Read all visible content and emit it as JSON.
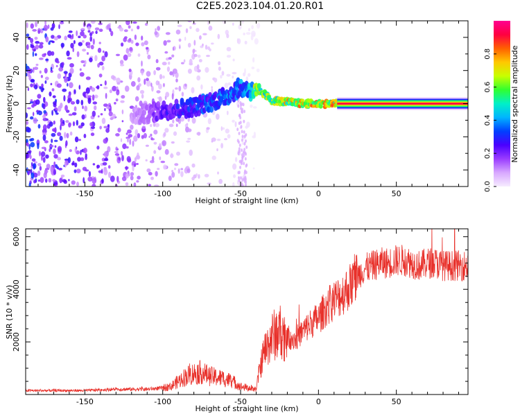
{
  "title": "C2E5.2023.104.01.20.R01",
  "chart_data": [
    {
      "type": "heatmap",
      "title": "",
      "xlabel": "Height of straight line (km)",
      "ylabel": "Frequency (Hz)",
      "xlim": [
        -188,
        96
      ],
      "ylim": [
        -50,
        50
      ],
      "xticks": [
        -150,
        -100,
        -50,
        0,
        50
      ],
      "yticks": [
        -40,
        -20,
        0,
        20,
        40
      ],
      "colorbar": {
        "label": "Normalized spectral amplitude",
        "range": [
          0.0,
          1.0
        ],
        "ticks": [
          0.0,
          0.2,
          0.4,
          0.6,
          0.8
        ],
        "tick_labels": [
          "0.0",
          "0.2",
          "0.4",
          "0.6",
          "0.8"
        ],
        "colors": [
          "#f6ecff",
          "#d8a8ff",
          "#9a3cff",
          "#4a00ff",
          "#0040ff",
          "#00b4ff",
          "#00f0c8",
          "#30ff30",
          "#c8ff00",
          "#ffc800",
          "#ff6000",
          "#ff0040",
          "#ff0090"
        ]
      },
      "ridge": [
        {
          "x": -120,
          "freq": -8,
          "amp": 0.1
        },
        {
          "x": -110,
          "freq": -6,
          "amp": 0.15
        },
        {
          "x": -100,
          "freq": -4,
          "amp": 0.25
        },
        {
          "x": -90,
          "freq": -3,
          "amp": 0.3
        },
        {
          "x": -80,
          "freq": -2,
          "amp": 0.35
        },
        {
          "x": -70,
          "freq": 1,
          "amp": 0.35
        },
        {
          "x": -60,
          "freq": 4,
          "amp": 0.4
        },
        {
          "x": -50,
          "freq": 10,
          "amp": 0.4
        },
        {
          "x": -45,
          "freq": 8,
          "amp": 0.45
        },
        {
          "x": -40,
          "freq": 7,
          "amp": 0.7
        },
        {
          "x": -35,
          "freq": 6,
          "amp": 0.65
        },
        {
          "x": -30,
          "freq": 2,
          "amp": 0.7
        },
        {
          "x": -20,
          "freq": 1,
          "amp": 0.75
        },
        {
          "x": -10,
          "freq": 0,
          "amp": 0.8
        },
        {
          "x": 0,
          "freq": 0,
          "amp": 0.8
        },
        {
          "x": 12,
          "freq": 0,
          "amp": 0.85
        },
        {
          "x": 96,
          "freq": 0,
          "amp": 0.9
        }
      ]
    },
    {
      "type": "line",
      "title": "",
      "xlabel": "Height of straight line (km)",
      "ylabel": "SNR (10 * v/v)",
      "xlim": [
        -188,
        96
      ],
      "ylim": [
        0,
        6300
      ],
      "xticks": [
        -150,
        -100,
        -50,
        0,
        50
      ],
      "yticks": [
        2000,
        4000,
        6000
      ],
      "line_color": "#e8302a",
      "series": [
        {
          "name": "SNR",
          "x": [
            -188,
            -170,
            -150,
            -130,
            -110,
            -100,
            -95,
            -90,
            -85,
            -80,
            -75,
            -70,
            -65,
            -60,
            -55,
            -50,
            -45,
            -40,
            -38,
            -35,
            -30,
            -25,
            -20,
            -15,
            -10,
            -5,
            0,
            5,
            10,
            15,
            20,
            25,
            30,
            35,
            40,
            45,
            50,
            55,
            60,
            65,
            70,
            75,
            80,
            85,
            90,
            96
          ],
          "values": [
            150,
            150,
            150,
            200,
            200,
            250,
            300,
            500,
            700,
            800,
            850,
            700,
            650,
            600,
            500,
            300,
            250,
            200,
            900,
            1600,
            2200,
            2400,
            2200,
            2100,
            2400,
            2700,
            2900,
            3300,
            3600,
            3800,
            4100,
            4500,
            4800,
            4900,
            5000,
            5000,
            5100,
            5100,
            5000,
            4900,
            5000,
            5000,
            4900,
            4900,
            4900,
            4900
          ]
        }
      ]
    }
  ]
}
